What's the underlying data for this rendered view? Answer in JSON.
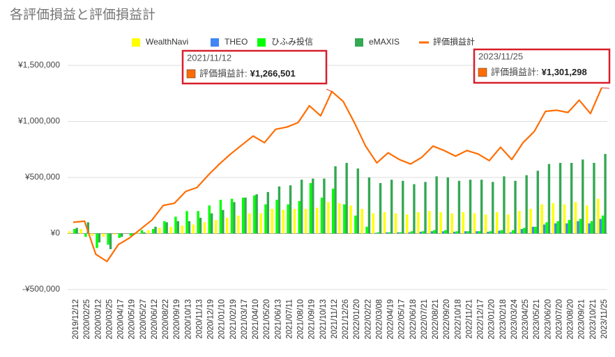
{
  "chart_data": {
    "type": "bar_line",
    "title": "各評価損益と評価損益計",
    "categories": [
      "2019/12/12",
      "2020/02/25",
      "2020/03/12",
      "2020/03/25",
      "2020/04/17",
      "2020/05/19",
      "2020/05/27",
      "2020/06/12",
      "2020/08/22",
      "2020/09/19",
      "2020/10/13",
      "2020/11/13",
      "2020/12/19",
      "2021/01/10",
      "2021/02/19",
      "2021/03/17",
      "2021/04/10",
      "2021/05/20",
      "2021/06/13",
      "2021/07/11",
      "2021/08/10",
      "2021/09/19",
      "2021/10/13",
      "2021/11/12",
      "2021/12/26",
      "2022/01/20",
      "2022/02/22",
      "2022/03/08",
      "2022/04/19",
      "2022/05/17",
      "2022/06/18",
      "2022/07/21",
      "2022/08/21",
      "2022/09/20",
      "2022/10/18",
      "2022/11/21",
      "2022/12/17",
      "2023/01/20",
      "2023/02/18",
      "2023/03/24",
      "2023/04/25",
      "2023/05/21",
      "2023/06/20",
      "2023/07/20",
      "2023/08/20",
      "2023/09/21",
      "2023/10/21",
      "2023/11/25"
    ],
    "series": [
      {
        "name": "WealthNavi",
        "color": "#ffff00",
        "kind": "bar",
        "values": [
          20000,
          40000,
          -20000,
          -30000,
          -10000,
          0,
          10000,
          30000,
          50000,
          60000,
          70000,
          80000,
          100000,
          120000,
          140000,
          160000,
          180000,
          180000,
          220000,
          210000,
          220000,
          220000,
          230000,
          280000,
          270000,
          250000,
          220000,
          180000,
          190000,
          180000,
          170000,
          190000,
          200000,
          190000,
          180000,
          190000,
          180000,
          170000,
          190000,
          170000,
          200000,
          220000,
          260000,
          270000,
          260000,
          280000,
          250000,
          310000
        ]
      },
      {
        "name": "THEO",
        "color": "#4285f4",
        "kind": "bar",
        "values": [
          0,
          0,
          0,
          0,
          0,
          0,
          0,
          0,
          0,
          0,
          0,
          0,
          0,
          0,
          0,
          0,
          0,
          0,
          0,
          0,
          0,
          0,
          0,
          0,
          0,
          0,
          0,
          5000,
          10000,
          10000,
          10000,
          15000,
          20000,
          20000,
          15000,
          20000,
          20000,
          15000,
          25000,
          10000,
          40000,
          60000,
          80000,
          90000,
          90000,
          110000,
          90000,
          130000
        ]
      },
      {
        "name": "ひふみ投信",
        "color": "#00ff00",
        "kind": "bar",
        "values": [
          40000,
          -30000,
          -130000,
          -100000,
          -40000,
          -20000,
          30000,
          40000,
          110000,
          150000,
          200000,
          200000,
          250000,
          300000,
          310000,
          320000,
          340000,
          260000,
          300000,
          260000,
          290000,
          450000,
          320000,
          400000,
          260000,
          160000,
          60000,
          10000,
          10000,
          10000,
          20000,
          20000,
          30000,
          30000,
          20000,
          20000,
          20000,
          20000,
          30000,
          30000,
          50000,
          60000,
          100000,
          110000,
          120000,
          130000,
          110000,
          160000
        ]
      },
      {
        "name": "eMAXIS",
        "color": "#34a853",
        "kind": "bar",
        "values": [
          50000,
          100000,
          -80000,
          -140000,
          -30000,
          -10000,
          10000,
          60000,
          100000,
          110000,
          110000,
          140000,
          180000,
          210000,
          280000,
          320000,
          350000,
          370000,
          420000,
          430000,
          480000,
          490000,
          490000,
          600000,
          630000,
          580000,
          500000,
          450000,
          480000,
          470000,
          440000,
          460000,
          510000,
          500000,
          470000,
          480000,
          480000,
          460000,
          510000,
          470000,
          520000,
          560000,
          620000,
          630000,
          630000,
          660000,
          630000,
          710000
        ]
      },
      {
        "name": "評価損益計",
        "color": "#ff6d01",
        "kind": "line",
        "values": [
          100000,
          110000,
          -185000,
          -250000,
          -100000,
          -40000,
          40000,
          120000,
          250000,
          270000,
          375000,
          410000,
          520000,
          620000,
          710000,
          790000,
          870000,
          810000,
          930000,
          950000,
          990000,
          1140000,
          1050000,
          1266501,
          1180000,
          990000,
          780000,
          630000,
          720000,
          660000,
          620000,
          680000,
          780000,
          740000,
          690000,
          740000,
          710000,
          650000,
          770000,
          660000,
          810000,
          910000,
          1090000,
          1100000,
          1080000,
          1190000,
          1070000,
          1301298
        ]
      }
    ],
    "ylim": [
      -500000,
      1500000
    ],
    "yticks": [
      {
        "value": -500000,
        "label": "-¥500,000"
      },
      {
        "value": 0,
        "label": "¥0"
      },
      {
        "value": 500000,
        "label": "¥500,000"
      },
      {
        "value": 1000000,
        "label": "¥1,000,000"
      },
      {
        "value": 1500000,
        "label": "¥1,500,000"
      }
    ],
    "grid": true,
    "legend": "top",
    "annotations": [
      {
        "date": "2021/11/12",
        "label": "評価損益計:",
        "value": "¥1,266,501"
      },
      {
        "date": "2023/11/25",
        "label": "評価損益計:",
        "value": "¥1,301,298"
      }
    ]
  }
}
